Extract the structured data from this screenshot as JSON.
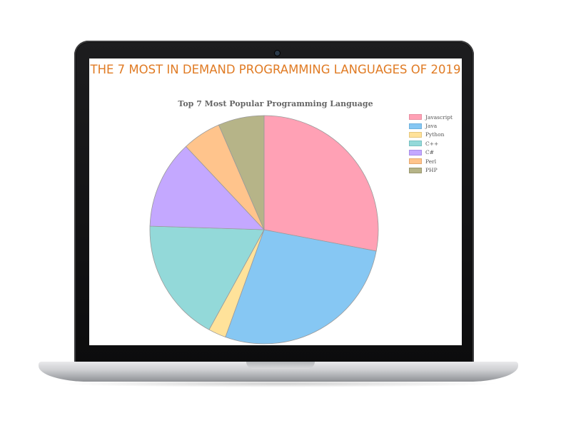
{
  "headline": "THE 7 MOST IN DEMAND PROGRAMMING LANGUAGES OF 2019",
  "chart_data": {
    "type": "pie",
    "title": "Top 7 Most Popular Programming Language",
    "legend_position": "top-right",
    "slices": [
      {
        "label": "Javascript",
        "value": 28.0,
        "color": "#ffa1b5",
        "border": "#e88fa2"
      },
      {
        "label": "Java",
        "value": 27.5,
        "color": "#86c7f3",
        "border": "#6fb1dd"
      },
      {
        "label": "Python",
        "value": 2.5,
        "color": "#ffe29a",
        "border": "#e6c77e"
      },
      {
        "label": "C++",
        "value": 17.5,
        "color": "#93d9d9",
        "border": "#78c0c0"
      },
      {
        "label": "C#",
        "value": 12.5,
        "color": "#c4a8ff",
        "border": "#a98ee6"
      },
      {
        "label": "Perl",
        "value": 5.5,
        "color": "#ffc48c",
        "border": "#e6a970"
      },
      {
        "label": "PHP",
        "value": 6.5,
        "color": "#b6b488",
        "border": "#9a9870"
      }
    ]
  }
}
